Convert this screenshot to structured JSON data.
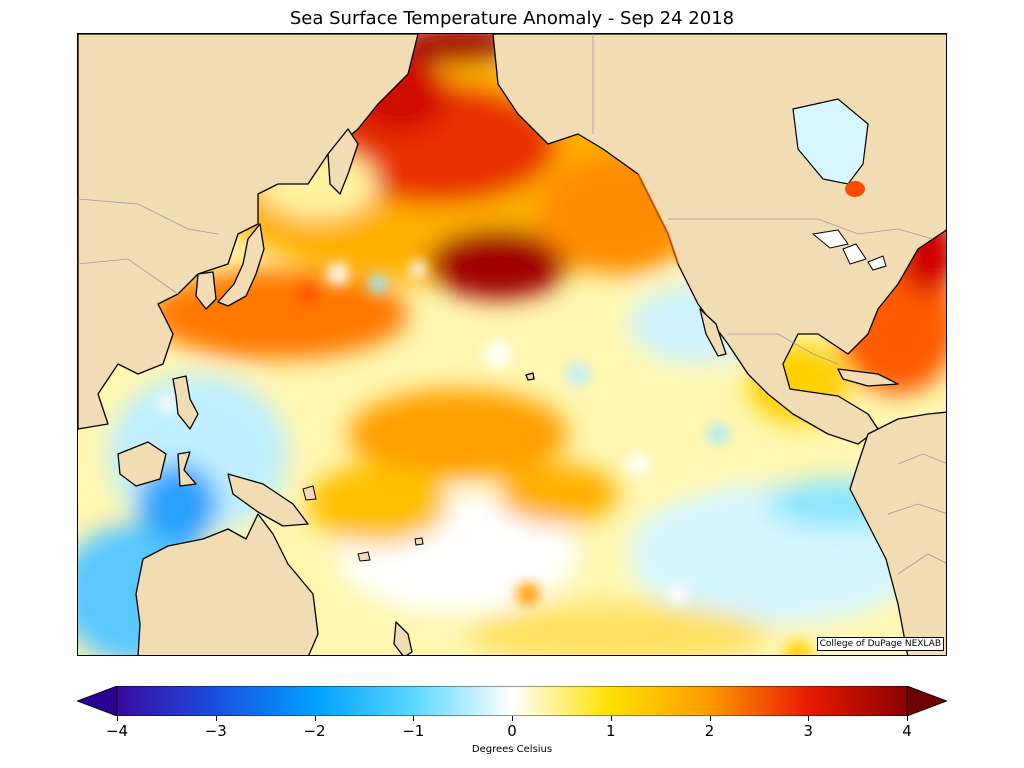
{
  "title": "Sea Surface Temperature Anomaly - Sep 24 2018",
  "credit": "College of DuPage NEXLAB",
  "colorbar": {
    "label": "Degrees Celsius",
    "min": -4,
    "max": 4,
    "extend": "both",
    "ticks": [
      "−4",
      "−3",
      "−2",
      "−1",
      "0",
      "1",
      "2",
      "3",
      "4"
    ],
    "tick_values": [
      -4,
      -3,
      -2,
      -1,
      0,
      1,
      2,
      3,
      4
    ],
    "colors": [
      "#3a0aa0",
      "#1a4fe0",
      "#00a0ff",
      "#5ad8ff",
      "#ffffff",
      "#ffe100",
      "#ff9a00",
      "#e81a00",
      "#8b0000"
    ]
  },
  "colors": {
    "land": "#f2dcb4",
    "coastline": "#000000",
    "borders": "#9a9a9a"
  }
}
